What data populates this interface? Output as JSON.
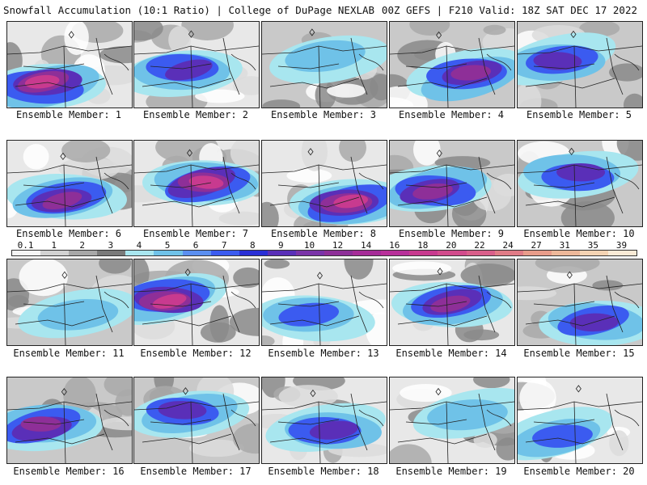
{
  "header": {
    "left_title": "Snowfall Accumulation (10:1 Ratio) | College of DuPage NEXLAB",
    "right_title": "00Z GEFS | F210 Valid: 18Z SAT DEC 17 2022"
  },
  "members": [
    {
      "label": "Ensemble Member: 1",
      "intensity": 0.85
    },
    {
      "label": "Ensemble Member: 2",
      "intensity": 0.6
    },
    {
      "label": "Ensemble Member: 3",
      "intensity": 0.15
    },
    {
      "label": "Ensemble Member: 4",
      "intensity": 0.7
    },
    {
      "label": "Ensemble Member: 5",
      "intensity": 0.55
    },
    {
      "label": "Ensemble Member: 6",
      "intensity": 0.75
    },
    {
      "label": "Ensemble Member: 7",
      "intensity": 0.9
    },
    {
      "label": "Ensemble Member: 8",
      "intensity": 0.8
    },
    {
      "label": "Ensemble Member: 9",
      "intensity": 0.65
    },
    {
      "label": "Ensemble Member: 10",
      "intensity": 0.5
    },
    {
      "label": "Ensemble Member: 11",
      "intensity": 0.35
    },
    {
      "label": "Ensemble Member: 12",
      "intensity": 0.8
    },
    {
      "label": "Ensemble Member: 13",
      "intensity": 0.45
    },
    {
      "label": "Ensemble Member: 14",
      "intensity": 0.75
    },
    {
      "label": "Ensemble Member: 15",
      "intensity": 0.6
    },
    {
      "label": "Ensemble Member: 16",
      "intensity": 0.7
    },
    {
      "label": "Ensemble Member: 17",
      "intensity": 0.5
    },
    {
      "label": "Ensemble Member: 18",
      "intensity": 0.6
    },
    {
      "label": "Ensemble Member: 19",
      "intensity": 0.35
    },
    {
      "label": "Ensemble Member: 20",
      "intensity": 0.45
    }
  ],
  "colorbar": {
    "ticks": [
      "0.1",
      "1",
      "2",
      "3",
      "4",
      "5",
      "6",
      "7",
      "8",
      "9",
      "10",
      "12",
      "14",
      "16",
      "18",
      "20",
      "22",
      "24",
      "27",
      "31",
      "35",
      "39"
    ],
    "colors": [
      "#f5f5f5",
      "#d2d2d2",
      "#a8a8a8",
      "#7a7a7a",
      "#a8e6ef",
      "#6fc2e8",
      "#5b8ff0",
      "#3b5bf0",
      "#2a2fd6",
      "#5a2fb8",
      "#7a33a8",
      "#8e2f98",
      "#a62c98",
      "#b8309a",
      "#c83a8f",
      "#d24b8c",
      "#d95e8a",
      "#e07b86",
      "#e89c8a",
      "#eeb89a",
      "#f4d3b3",
      "#f9ead6"
    ]
  }
}
